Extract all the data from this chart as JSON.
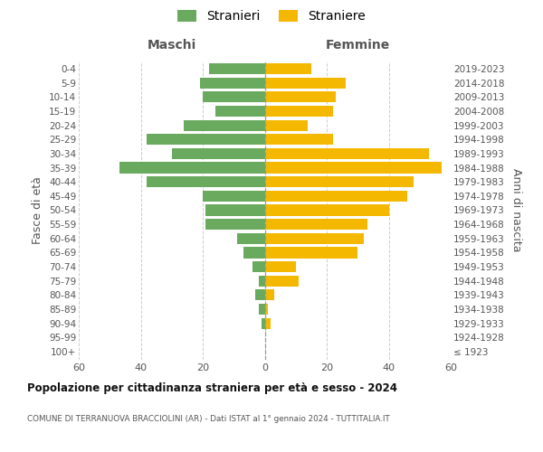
{
  "age_groups": [
    "100+",
    "95-99",
    "90-94",
    "85-89",
    "80-84",
    "75-79",
    "70-74",
    "65-69",
    "60-64",
    "55-59",
    "50-54",
    "45-49",
    "40-44",
    "35-39",
    "30-34",
    "25-29",
    "20-24",
    "15-19",
    "10-14",
    "5-9",
    "0-4"
  ],
  "birth_years": [
    "≤ 1923",
    "1924-1928",
    "1929-1933",
    "1934-1938",
    "1939-1943",
    "1944-1948",
    "1949-1953",
    "1954-1958",
    "1959-1963",
    "1964-1968",
    "1969-1973",
    "1974-1978",
    "1979-1983",
    "1984-1988",
    "1989-1993",
    "1994-1998",
    "1999-2003",
    "2004-2008",
    "2009-2013",
    "2014-2018",
    "2019-2023"
  ],
  "males": [
    0,
    0,
    1,
    2,
    3,
    2,
    4,
    7,
    9,
    19,
    19,
    20,
    38,
    47,
    30,
    38,
    26,
    16,
    20,
    21,
    18
  ],
  "females": [
    0,
    0,
    2,
    1,
    3,
    11,
    10,
    30,
    32,
    33,
    40,
    46,
    48,
    57,
    53,
    22,
    14,
    22,
    23,
    26,
    15
  ],
  "male_color": "#6aaa5e",
  "female_color": "#f5b800",
  "title": "Popolazione per cittadinanza straniera per età e sesso - 2024",
  "subtitle": "COMUNE DI TERRANUOVA BRACCIOLINI (AR) - Dati ISTAT al 1° gennaio 2024 - TUTTITALIA.IT",
  "ylabel_left": "Fasce di età",
  "ylabel_right": "Anni di nascita",
  "header_left": "Maschi",
  "header_right": "Femmine",
  "legend_male": "Stranieri",
  "legend_female": "Straniere",
  "xlim": 60,
  "background_color": "#ffffff",
  "grid_color": "#cccccc"
}
